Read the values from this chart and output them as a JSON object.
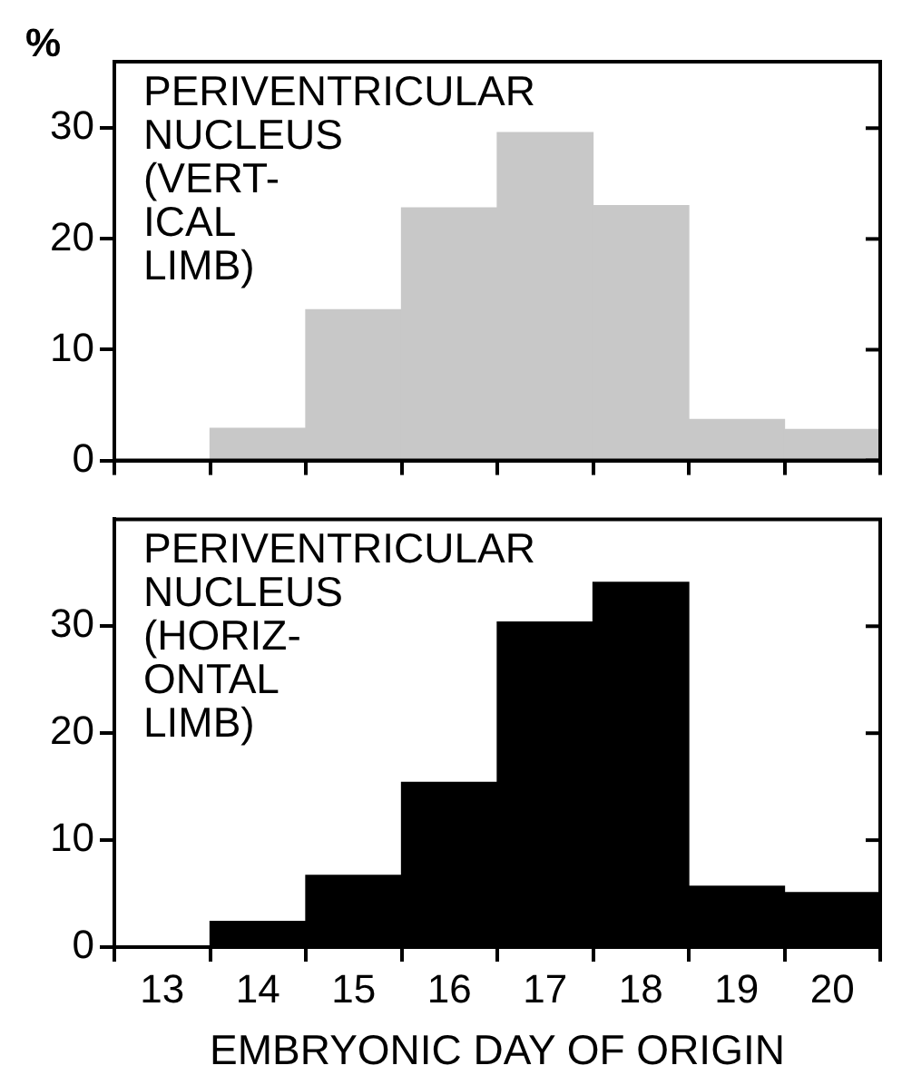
{
  "chart_data": [
    {
      "type": "bar",
      "title": "PERIVENTRICULAR\nNUCLEUS\n(VERT-\nICAL\nLIMB)",
      "ylabel": "%",
      "categories": [
        "13",
        "14",
        "15",
        "16",
        "17",
        "18",
        "19",
        "20"
      ],
      "values": [
        0,
        2.9,
        13.6,
        22.8,
        29.6,
        23,
        3.7,
        2.8
      ],
      "color": "#c8c8c8",
      "ylim": [
        0,
        36
      ],
      "yticks": [
        0,
        10,
        20,
        30
      ],
      "tick_labels": "y"
    },
    {
      "type": "bar",
      "title": "PERIVENTRICULAR\nNUCLEUS\n(HORIZ-\nONTAL\nLIMB)",
      "xlabel": "EMBRYONIC DAY OF ORIGIN",
      "categories": [
        "13",
        "14",
        "15",
        "16",
        "17",
        "18",
        "19",
        "20"
      ],
      "values": [
        0,
        2.4,
        6.7,
        15.4,
        30.4,
        34.1,
        5.7,
        5.1
      ],
      "color": "#000000",
      "ylim": [
        0,
        40
      ],
      "yticks": [
        0,
        10,
        20,
        30
      ]
    }
  ]
}
